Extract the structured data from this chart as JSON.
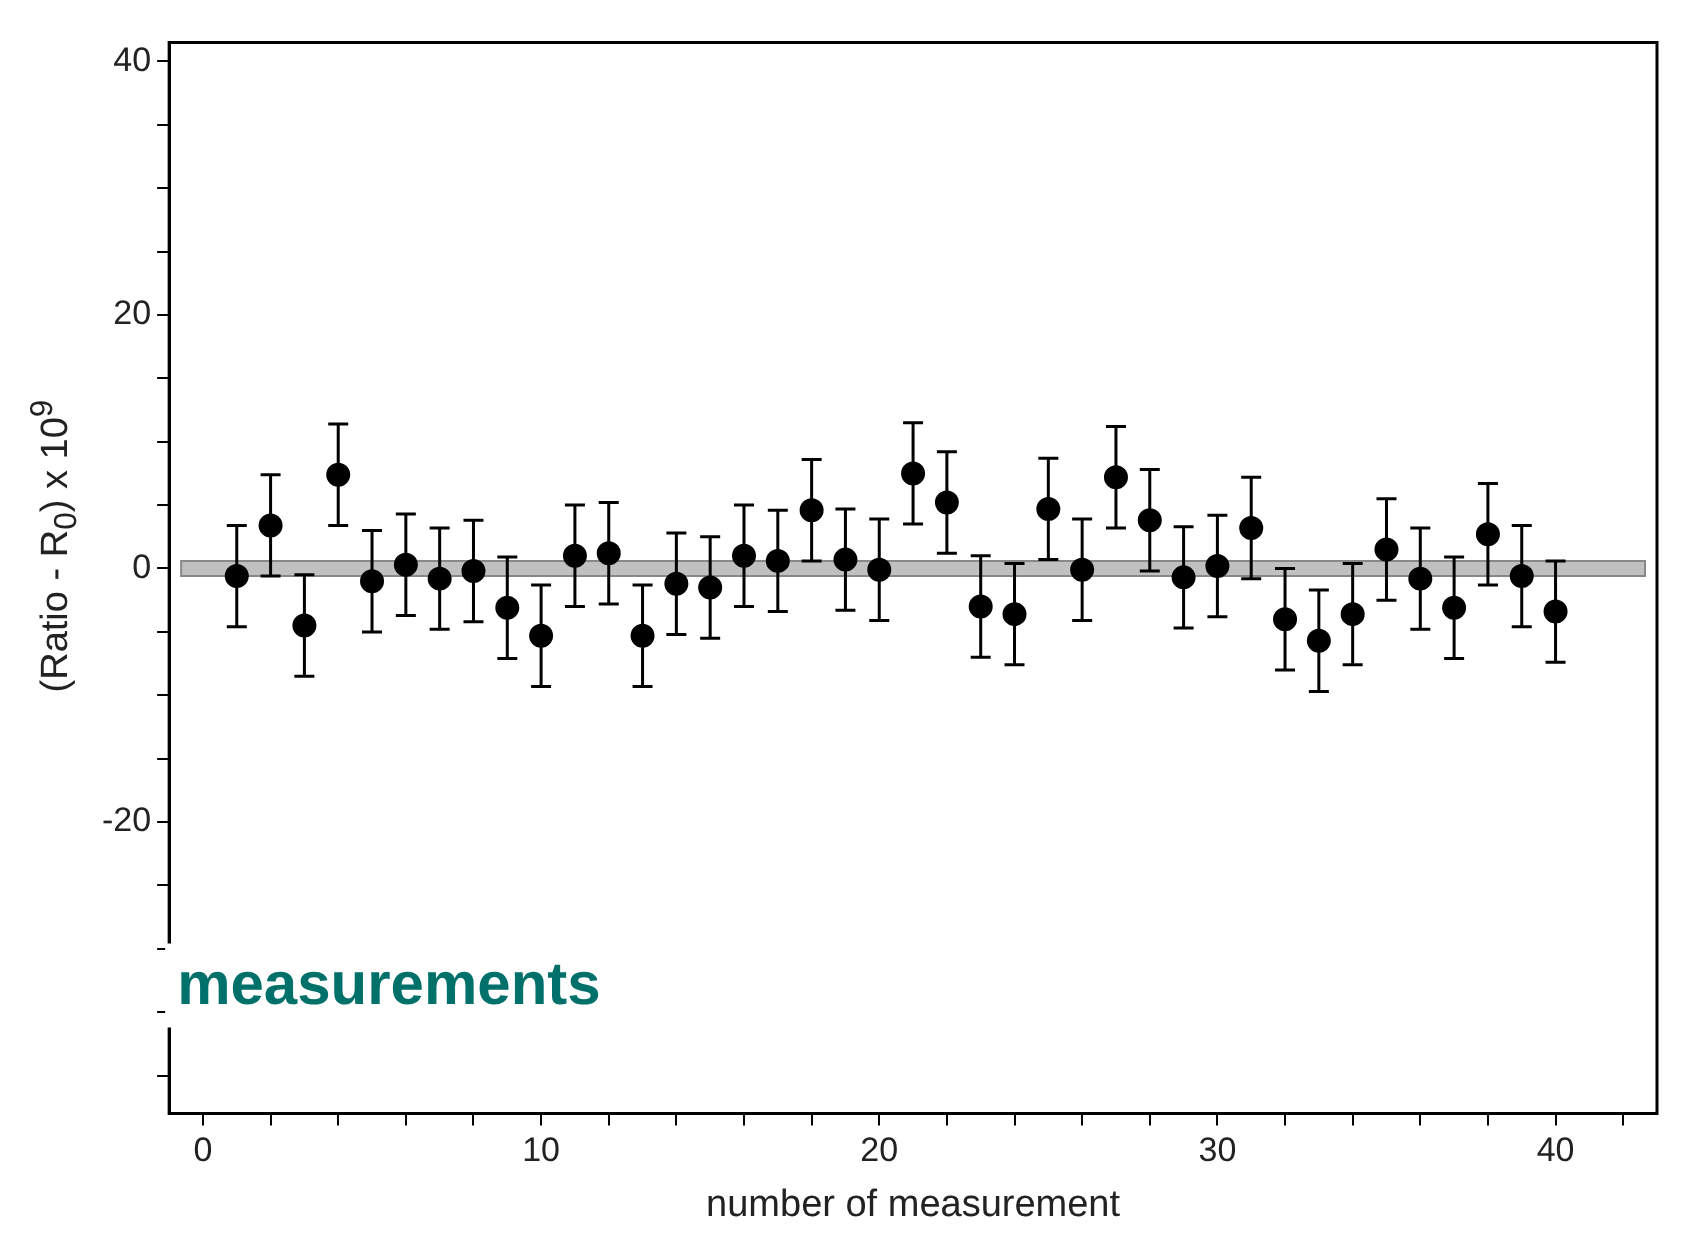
{
  "chart_data": {
    "type": "scatter",
    "xlabel": "number of measurement",
    "ylabel": "(Ratio - R$_{0}$) x 10$^{9}$",
    "annotations": [
      "measurements"
    ],
    "x": [
      1,
      2,
      3,
      4,
      5,
      6,
      7,
      8,
      9,
      10,
      11,
      12,
      13,
      14,
      15,
      16,
      17,
      18,
      19,
      20,
      21,
      22,
      23,
      24,
      25,
      26,
      27,
      28,
      29,
      30,
      31,
      32,
      33,
      34,
      35,
      36,
      37,
      38,
      39,
      40
    ],
    "series": [
      {
        "color": "#000000",
        "values": [
          -0.6,
          3.4,
          -4.5,
          7.4,
          -1.0,
          0.3,
          -0.8,
          -0.2,
          -3.1,
          -5.3,
          1.0,
          1.2,
          -5.3,
          -1.2,
          -1.5,
          1.0,
          0.6,
          4.6,
          0.7,
          -0.1,
          7.5,
          5.2,
          -3.0,
          -3.6,
          4.7,
          -0.1,
          7.2,
          3.8,
          -0.7,
          0.2,
          3.2,
          -4.0,
          -5.7,
          -3.6,
          1.5,
          -0.8,
          -3.1,
          2.7,
          -0.6,
          -3.4
        ],
        "errors": [
          4,
          4,
          4,
          4,
          4,
          4,
          4,
          4,
          4,
          4,
          4,
          4,
          4,
          4,
          4,
          4,
          4,
          4,
          4,
          4,
          4,
          4,
          4,
          4,
          4,
          4,
          4,
          4,
          4,
          4,
          4,
          4,
          4,
          4,
          4,
          4,
          4,
          4,
          4,
          4
        ]
      }
    ],
    "bands": [
      {
        "axis": "y",
        "from": -0.6,
        "to": 0.6,
        "color": "#c0c0c0"
      }
    ],
    "xlim": [
      -1,
      43
    ],
    "ylim": [
      -43,
      41.5
    ],
    "xticks": [
      0,
      {
        "value": 2,
        "label": null
      },
      {
        "value": 4,
        "label": null
      },
      {
        "value": 6,
        "label": null
      },
      {
        "value": 8,
        "label": null
      },
      10,
      {
        "value": 12,
        "label": null
      },
      {
        "value": 14,
        "label": null
      },
      {
        "value": 16,
        "label": null
      },
      {
        "value": 18,
        "label": null
      },
      20,
      {
        "value": 22,
        "label": null
      },
      {
        "value": 24,
        "label": null
      },
      {
        "value": 26,
        "label": null
      },
      {
        "value": 28,
        "label": null
      },
      30,
      {
        "value": 32,
        "label": null
      },
      {
        "value": 34,
        "label": null
      },
      {
        "value": 36,
        "label": null
      },
      {
        "value": 38,
        "label": null
      },
      40,
      {
        "value": 42,
        "label": null
      }
    ],
    "yticks": [
      {
        "value": -40,
        "label": null
      },
      {
        "value": -35,
        "label": null
      },
      {
        "value": -30,
        "label": null
      },
      {
        "value": -25,
        "label": null
      },
      -20,
      {
        "value": -15,
        "label": null
      },
      {
        "value": -10,
        "label": null
      },
      {
        "value": -5,
        "label": null
      },
      0,
      {
        "value": 5,
        "label": null
      },
      {
        "value": 10,
        "label": null
      },
      {
        "value": 15,
        "label": null
      },
      20,
      {
        "value": 25,
        "label": null
      },
      {
        "value": 30,
        "label": null
      },
      {
        "value": 35,
        "label": null
      },
      40
    ],
    "marker": "circle",
    "grid": false,
    "legend": false
  }
}
